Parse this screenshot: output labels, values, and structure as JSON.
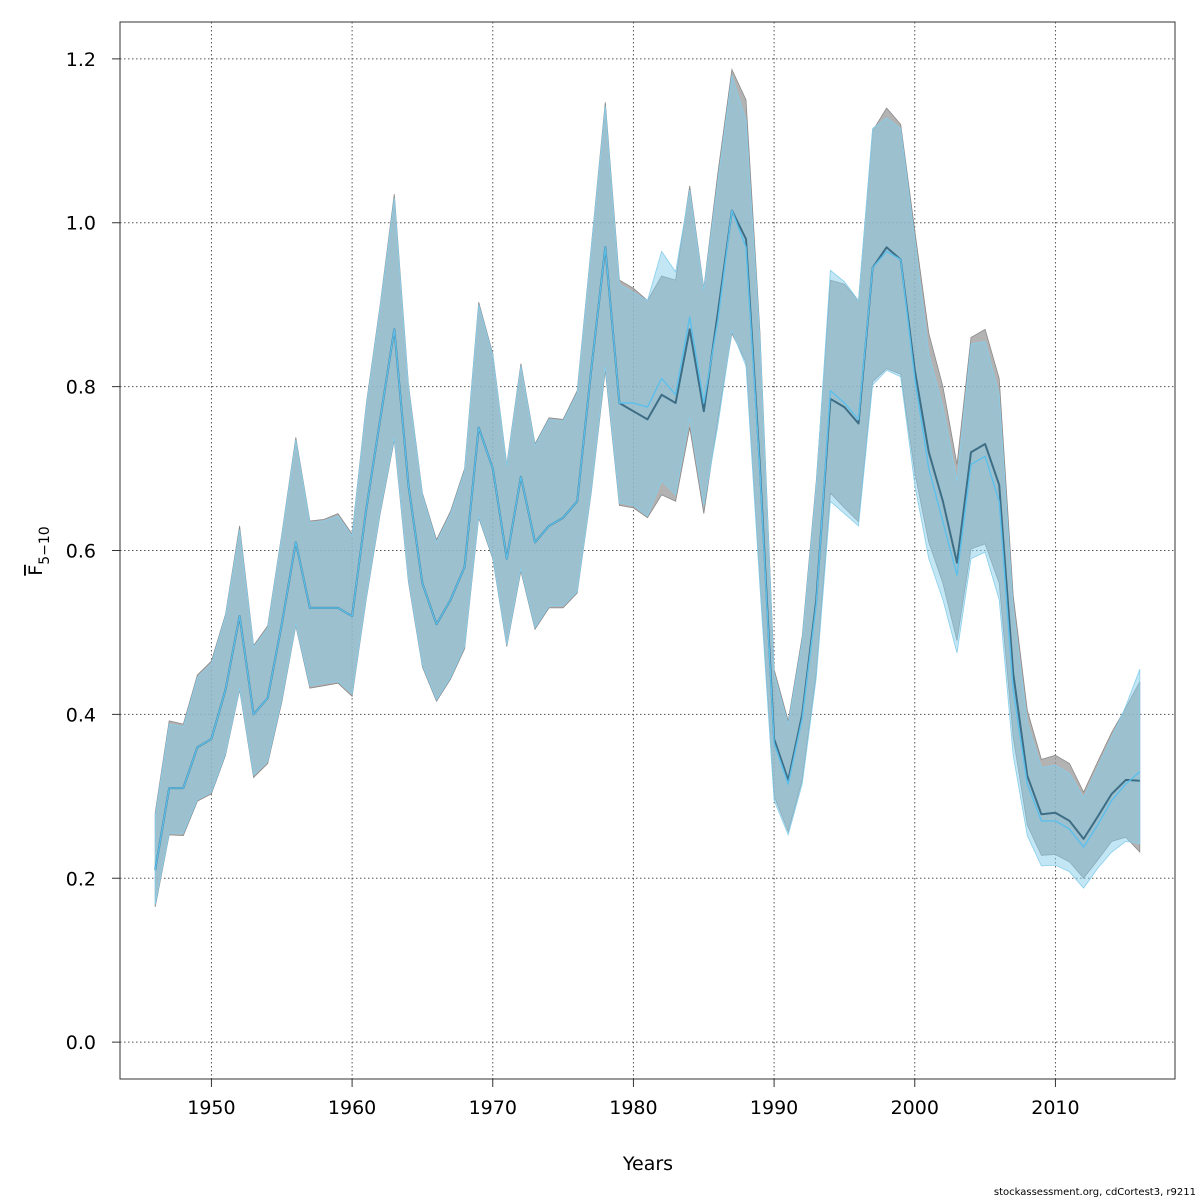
{
  "chart_data": {
    "type": "area",
    "xlabel": "Years",
    "ylabel": {
      "main": "F",
      "sub": "5−10"
    },
    "footer": "stockassessment.org, cdCortest3, r9211",
    "xlim": [
      1943.5,
      2018.5
    ],
    "ylim": [
      -0.045,
      1.245
    ],
    "xticks": [
      1950,
      1960,
      1970,
      1980,
      1990,
      2000,
      2010
    ],
    "yticks": [
      "0.0",
      "0.2",
      "0.4",
      "0.6",
      "0.8",
      "1.0",
      "1.2"
    ],
    "grid": true,
    "colors": {
      "run1_band": "#999999",
      "run1_line": "#3d6e86",
      "run2_band": "#87ceeb",
      "run2_line": "#5bc0eb"
    },
    "x": [
      1946,
      1947,
      1948,
      1949,
      1950,
      1951,
      1952,
      1953,
      1954,
      1955,
      1956,
      1957,
      1958,
      1959,
      1960,
      1961,
      1962,
      1963,
      1964,
      1965,
      1966,
      1967,
      1968,
      1969,
      1970,
      1971,
      1972,
      1973,
      1974,
      1975,
      1976,
      1977,
      1978,
      1979,
      1980,
      1981,
      1982,
      1983,
      1984,
      1985,
      1986,
      1987,
      1988,
      1989,
      1990,
      1991,
      1992,
      1993,
      1994,
      1995,
      1996,
      1997,
      1998,
      1999,
      2000,
      2001,
      2002,
      2003,
      2004,
      2005,
      2006,
      2007,
      2008,
      2009,
      2010,
      2011,
      2012,
      2013,
      2014,
      2015,
      2016
    ],
    "series": [
      {
        "values": [
          0.21,
          0.31,
          0.31,
          0.36,
          0.37,
          0.43,
          0.52,
          0.4,
          0.42,
          0.51,
          0.61,
          0.53,
          0.53,
          0.53,
          0.52,
          0.65,
          0.76,
          0.87,
          0.68,
          0.56,
          0.51,
          0.54,
          0.58,
          0.75,
          0.7,
          0.59,
          0.69,
          0.61,
          0.63,
          0.64,
          0.66,
          0.82,
          0.97,
          0.78,
          0.77,
          0.76,
          0.79,
          0.78,
          0.87,
          0.77,
          0.89,
          1.015,
          0.98,
          0.7,
          0.37,
          0.32,
          0.4,
          0.54,
          0.785,
          0.775,
          0.755,
          0.945,
          0.97,
          0.955,
          0.82,
          0.72,
          0.66,
          0.585,
          0.72,
          0.73,
          0.68,
          0.45,
          0.325,
          0.278,
          0.28,
          0.27,
          0.248,
          0.275,
          0.303,
          0.32,
          0.319
        ],
        "lower": [
          0.165,
          0.253,
          0.252,
          0.294,
          0.303,
          0.35,
          0.43,
          0.323,
          0.34,
          0.415,
          0.508,
          0.432,
          0.435,
          0.438,
          0.422,
          0.54,
          0.645,
          0.735,
          0.562,
          0.458,
          0.416,
          0.443,
          0.48,
          0.64,
          0.59,
          0.483,
          0.575,
          0.504,
          0.53,
          0.53,
          0.548,
          0.67,
          0.82,
          0.655,
          0.652,
          0.64,
          0.668,
          0.66,
          0.75,
          0.645,
          0.76,
          0.865,
          0.83,
          0.56,
          0.3,
          0.257,
          0.32,
          0.45,
          0.67,
          0.652,
          0.635,
          0.806,
          0.822,
          0.815,
          0.695,
          0.61,
          0.56,
          0.49,
          0.602,
          0.608,
          0.56,
          0.372,
          0.265,
          0.228,
          0.229,
          0.22,
          0.2,
          0.222,
          0.245,
          0.25,
          0.232
        ],
        "upper": [
          0.28,
          0.392,
          0.388,
          0.448,
          0.465,
          0.522,
          0.63,
          0.484,
          0.508,
          0.62,
          0.738,
          0.636,
          0.638,
          0.645,
          0.62,
          0.778,
          0.9,
          1.035,
          0.803,
          0.67,
          0.613,
          0.648,
          0.7,
          0.903,
          0.84,
          0.705,
          0.828,
          0.73,
          0.762,
          0.76,
          0.795,
          0.97,
          1.147,
          0.93,
          0.92,
          0.905,
          0.935,
          0.93,
          1.045,
          0.92,
          1.06,
          1.187,
          1.15,
          0.865,
          0.455,
          0.392,
          0.495,
          0.685,
          0.93,
          0.925,
          0.905,
          1.112,
          1.14,
          1.12,
          0.99,
          0.865,
          0.8,
          0.705,
          0.86,
          0.87,
          0.81,
          0.545,
          0.405,
          0.345,
          0.35,
          0.34,
          0.305,
          0.342,
          0.378,
          0.408,
          0.44
        ]
      },
      {
        "values": [
          0.21,
          0.31,
          0.31,
          0.36,
          0.37,
          0.43,
          0.52,
          0.4,
          0.42,
          0.51,
          0.61,
          0.53,
          0.53,
          0.53,
          0.52,
          0.65,
          0.76,
          0.87,
          0.68,
          0.56,
          0.51,
          0.54,
          0.58,
          0.75,
          0.7,
          0.59,
          0.69,
          0.61,
          0.63,
          0.64,
          0.66,
          0.82,
          0.97,
          0.78,
          0.78,
          0.775,
          0.81,
          0.79,
          0.885,
          0.78,
          0.88,
          1.015,
          0.97,
          0.695,
          0.365,
          0.315,
          0.395,
          0.535,
          0.795,
          0.78,
          0.76,
          0.945,
          0.965,
          0.955,
          0.81,
          0.7,
          0.635,
          0.57,
          0.705,
          0.715,
          0.66,
          0.43,
          0.315,
          0.27,
          0.27,
          0.26,
          0.238,
          0.265,
          0.295,
          0.315,
          0.33
        ],
        "lower": [
          0.168,
          0.255,
          0.255,
          0.296,
          0.305,
          0.352,
          0.432,
          0.326,
          0.343,
          0.418,
          0.51,
          0.435,
          0.438,
          0.44,
          0.425,
          0.542,
          0.648,
          0.738,
          0.565,
          0.46,
          0.418,
          0.445,
          0.483,
          0.642,
          0.592,
          0.485,
          0.578,
          0.506,
          0.532,
          0.533,
          0.55,
          0.672,
          0.825,
          0.658,
          0.655,
          0.642,
          0.685,
          0.668,
          0.762,
          0.655,
          0.752,
          0.868,
          0.825,
          0.555,
          0.295,
          0.253,
          0.315,
          0.445,
          0.66,
          0.645,
          0.63,
          0.802,
          0.82,
          0.812,
          0.68,
          0.59,
          0.54,
          0.475,
          0.59,
          0.598,
          0.54,
          0.35,
          0.252,
          0.215,
          0.216,
          0.208,
          0.188,
          0.212,
          0.232,
          0.245,
          0.242
        ],
        "upper": [
          0.276,
          0.388,
          0.385,
          0.445,
          0.462,
          0.52,
          0.625,
          0.482,
          0.505,
          0.618,
          0.735,
          0.634,
          0.636,
          0.642,
          0.618,
          0.775,
          0.897,
          1.03,
          0.8,
          0.668,
          0.61,
          0.645,
          0.697,
          0.9,
          0.838,
          0.703,
          0.825,
          0.728,
          0.76,
          0.758,
          0.792,
          0.968,
          1.142,
          0.925,
          0.915,
          0.905,
          0.965,
          0.94,
          1.04,
          0.918,
          1.05,
          1.18,
          1.125,
          0.858,
          0.45,
          0.388,
          0.49,
          0.68,
          0.942,
          0.928,
          0.905,
          1.115,
          1.128,
          1.115,
          0.98,
          0.84,
          0.775,
          0.685,
          0.852,
          0.855,
          0.79,
          0.53,
          0.39,
          0.335,
          0.338,
          0.328,
          0.298,
          0.335,
          0.372,
          0.41,
          0.455
        ]
      }
    ]
  }
}
